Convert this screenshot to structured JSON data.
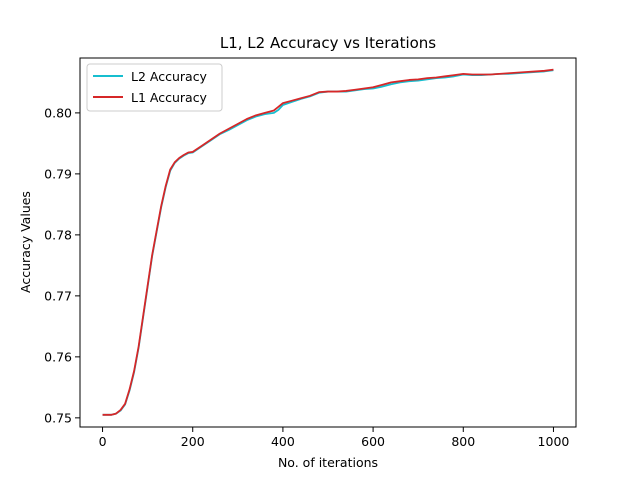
{
  "chart_data": {
    "type": "line",
    "title": "L1, L2 Accuracy vs Iterations",
    "xlabel": "No. of iterations",
    "ylabel": "Accuracy Values",
    "xlim": [
      -50,
      1050
    ],
    "ylim": [
      0.7485,
      0.809
    ],
    "x_ticks": [
      0,
      200,
      400,
      600,
      800,
      1000
    ],
    "x_tick_labels": [
      "0",
      "200",
      "400",
      "600",
      "800",
      "1000"
    ],
    "y_ticks": [
      0.75,
      0.76,
      0.77,
      0.78,
      0.79,
      0.8
    ],
    "y_tick_labels": [
      "0.75",
      "0.76",
      "0.77",
      "0.78",
      "0.79",
      "0.80"
    ],
    "grid": false,
    "legend_position": "top-left",
    "series": [
      {
        "name": "L2 Accuracy",
        "color": "#17becf",
        "x": [
          0,
          20,
          30,
          40,
          50,
          60,
          70,
          80,
          90,
          100,
          110,
          120,
          130,
          140,
          150,
          160,
          170,
          180,
          190,
          200,
          220,
          240,
          260,
          280,
          300,
          320,
          340,
          360,
          380,
          390,
          400,
          420,
          440,
          460,
          480,
          500,
          520,
          540,
          560,
          580,
          600,
          620,
          640,
          660,
          680,
          700,
          720,
          740,
          760,
          780,
          800,
          820,
          840,
          860,
          880,
          900,
          920,
          940,
          960,
          980,
          1000
        ],
        "y": [
          0.7505,
          0.7505,
          0.7507,
          0.7512,
          0.7522,
          0.7545,
          0.7575,
          0.7615,
          0.7665,
          0.7715,
          0.7765,
          0.7805,
          0.7845,
          0.7878,
          0.7905,
          0.7918,
          0.7925,
          0.793,
          0.7934,
          0.7935,
          0.7945,
          0.7955,
          0.7965,
          0.7972,
          0.798,
          0.7988,
          0.7994,
          0.7998,
          0.8,
          0.8005,
          0.8013,
          0.8018,
          0.8023,
          0.8027,
          0.8033,
          0.8035,
          0.8035,
          0.8035,
          0.8037,
          0.8039,
          0.804,
          0.8043,
          0.8047,
          0.805,
          0.8052,
          0.8053,
          0.8055,
          0.8057,
          0.8058,
          0.806,
          0.8063,
          0.8062,
          0.8062,
          0.8063,
          0.8064,
          0.8064,
          0.8065,
          0.8066,
          0.8067,
          0.8068,
          0.807
        ]
      },
      {
        "name": "L1 Accuracy",
        "color": "#d62728",
        "x": [
          0,
          20,
          30,
          40,
          50,
          60,
          70,
          80,
          90,
          100,
          110,
          120,
          130,
          140,
          150,
          160,
          170,
          180,
          190,
          200,
          220,
          240,
          260,
          280,
          300,
          320,
          340,
          360,
          380,
          390,
          400,
          420,
          440,
          460,
          480,
          500,
          520,
          540,
          560,
          580,
          600,
          620,
          640,
          660,
          680,
          700,
          720,
          740,
          760,
          780,
          800,
          820,
          840,
          860,
          880,
          900,
          920,
          940,
          960,
          980,
          1000
        ],
        "y": [
          0.7505,
          0.7505,
          0.7507,
          0.7513,
          0.7523,
          0.7547,
          0.7577,
          0.7617,
          0.7667,
          0.7717,
          0.7767,
          0.7807,
          0.7847,
          0.788,
          0.7907,
          0.7919,
          0.7926,
          0.7931,
          0.7935,
          0.7936,
          0.7946,
          0.7956,
          0.7966,
          0.7974,
          0.7982,
          0.799,
          0.7996,
          0.8,
          0.8004,
          0.801,
          0.8016,
          0.802,
          0.8024,
          0.8028,
          0.8034,
          0.8035,
          0.8035,
          0.8036,
          0.8038,
          0.804,
          0.8042,
          0.8046,
          0.805,
          0.8052,
          0.8054,
          0.8055,
          0.8057,
          0.8058,
          0.806,
          0.8062,
          0.8064,
          0.8063,
          0.8063,
          0.8063,
          0.8064,
          0.8065,
          0.8066,
          0.8067,
          0.8068,
          0.8069,
          0.8071
        ]
      }
    ]
  }
}
